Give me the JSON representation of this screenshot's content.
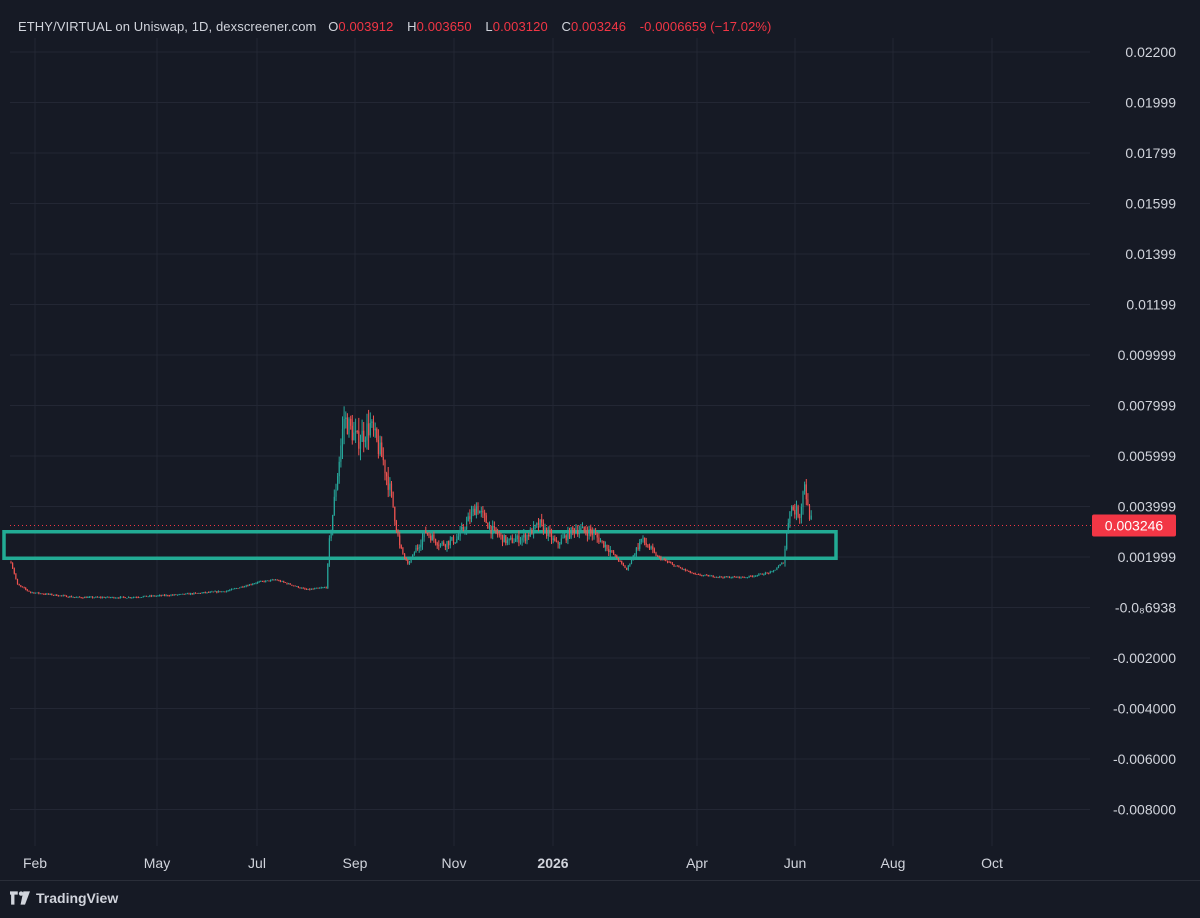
{
  "header": {
    "symbol": "ETHY/VIRTUAL on Uniswap, 1D, dexscreener.com",
    "open_label": "O",
    "open": "0.003912",
    "high_label": "H",
    "high": "0.003650",
    "low_label": "L",
    "low": "0.003120",
    "close_label": "C",
    "close": "0.003246",
    "change": "-0.0006659 (−17.02%)"
  },
  "price_axis": {
    "labels": [
      "0.02200",
      "0.01999",
      "0.01799",
      "0.01599",
      "0.01399",
      "0.01199",
      "0.009999",
      "0.007999",
      "0.005999",
      "0.003999",
      "0.001999",
      "-0.0₈6938",
      "-0.002000",
      "-0.004000",
      "-0.006000",
      "-0.008000"
    ],
    "current_price_label": "0.003246"
  },
  "time_axis": {
    "labels": [
      "Feb",
      "May",
      "Jul",
      "Sep",
      "Nov",
      "2026",
      "Apr",
      "Jun",
      "Aug",
      "Oct"
    ]
  },
  "footer": {
    "brand": "TradingView"
  },
  "colors": {
    "background": "#161a25",
    "grid": "#232734",
    "up": "#26a69a",
    "down": "#ef5350",
    "zone": "#22ab94",
    "price_tag": "#f23645",
    "axis_text": "#d1d4dc"
  },
  "chart_data": {
    "type": "candlestick",
    "title": "ETHY/VIRTUAL on Uniswap, 1D, dexscreener.com",
    "interval": "1D",
    "ylim": [
      -0.009,
      0.0225
    ],
    "grid": true,
    "last_price": 0.003246,
    "ohlc_last": {
      "open": 0.003912,
      "high": 0.00365,
      "low": 0.00312,
      "close": 0.003246,
      "change": -0.0006659,
      "change_pct": -17.02
    },
    "support_zone": {
      "low": 0.00195,
      "high": 0.003
    },
    "price_path": [
      [
        "2025-01-20",
        0.0018
      ],
      [
        "2025-01-24",
        0.0009
      ],
      [
        "2025-02-01",
        0.0006
      ],
      [
        "2025-03-01",
        0.0004
      ],
      [
        "2025-04-01",
        0.0004
      ],
      [
        "2025-05-01",
        0.0005
      ],
      [
        "2025-06-01",
        0.00065
      ],
      [
        "2025-06-20",
        0.001
      ],
      [
        "2025-07-01",
        0.0011
      ],
      [
        "2025-07-20",
        0.0007
      ],
      [
        "2025-08-01",
        0.0008
      ],
      [
        "2025-08-03",
        0.0026
      ],
      [
        "2025-08-12",
        0.0075
      ],
      [
        "2025-08-20",
        0.0066
      ],
      [
        "2025-08-28",
        0.0072
      ],
      [
        "2025-09-05",
        0.0058
      ],
      [
        "2025-09-10",
        0.0044
      ],
      [
        "2025-09-15",
        0.0024
      ],
      [
        "2025-09-20",
        0.0017
      ],
      [
        "2025-09-25",
        0.0023
      ],
      [
        "2025-10-01",
        0.003
      ],
      [
        "2025-10-10",
        0.0025
      ],
      [
        "2025-10-20",
        0.0027
      ],
      [
        "2025-11-01",
        0.004
      ],
      [
        "2025-11-10",
        0.0031
      ],
      [
        "2025-11-20",
        0.0026
      ],
      [
        "2025-12-01",
        0.0028
      ],
      [
        "2025-12-10",
        0.0033
      ],
      [
        "2025-12-20",
        0.0025
      ],
      [
        "2025-12-31",
        0.0031
      ],
      [
        "2026-01-10",
        0.003
      ],
      [
        "2026-01-20",
        0.0024
      ],
      [
        "2026-02-01",
        0.0015
      ],
      [
        "2026-02-10",
        0.0027
      ],
      [
        "2026-02-20",
        0.002
      ],
      [
        "2026-03-01",
        0.0017
      ],
      [
        "2026-03-15",
        0.0013
      ],
      [
        "2026-04-01",
        0.0012
      ],
      [
        "2026-04-15",
        0.0012
      ],
      [
        "2026-05-01",
        0.0014
      ],
      [
        "2026-05-08",
        0.0018
      ],
      [
        "2026-05-12",
        0.004
      ],
      [
        "2026-05-18",
        0.0037
      ],
      [
        "2026-05-21",
        0.005
      ],
      [
        "2026-05-23",
        0.0039
      ],
      [
        "2026-05-26",
        0.003246
      ]
    ]
  }
}
